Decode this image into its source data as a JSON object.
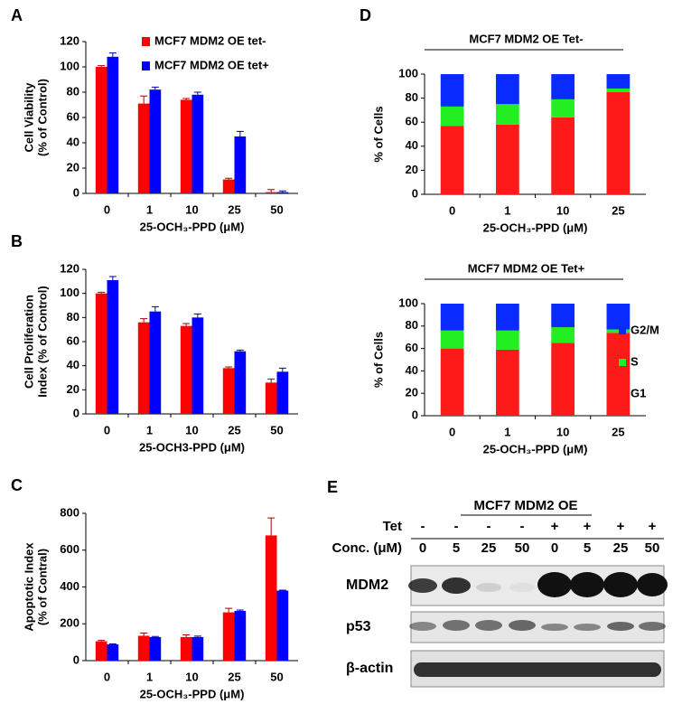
{
  "chart_data": [
    {
      "type": "bar",
      "label": "A",
      "categories": [
        "0",
        "1",
        "10",
        "25",
        "50"
      ],
      "series": [
        {
          "name": "MCF7 MDM2 OE tet-",
          "color": "#ff0000",
          "values": [
            100,
            71,
            74,
            11,
            1
          ],
          "errors": [
            1,
            6,
            1,
            1,
            2
          ]
        },
        {
          "name": "MCF7 MDM2 OE tet+",
          "color": "#0000ff",
          "values": [
            108,
            82,
            78,
            45,
            1
          ],
          "errors": [
            3,
            2,
            2,
            4,
            1
          ]
        }
      ],
      "ylim": [
        0,
        120
      ],
      "yticks": [
        0,
        20,
        40,
        60,
        80,
        100,
        120
      ],
      "ylabel": [
        "Cell Viability",
        "(% of Control)"
      ],
      "xlabel": "25-OCH₃-PPD (μM)",
      "legend": "top"
    },
    {
      "type": "bar",
      "label": "B",
      "categories": [
        "0",
        "1",
        "10",
        "25",
        "50"
      ],
      "series": [
        {
          "color": "#ff0000",
          "values": [
            100,
            76,
            73,
            38,
            26
          ],
          "errors": [
            1,
            3,
            2,
            1,
            3
          ]
        },
        {
          "color": "#0000ff",
          "values": [
            111,
            85,
            80,
            52,
            35
          ],
          "errors": [
            3,
            4,
            3,
            1,
            3
          ]
        }
      ],
      "ylim": [
        0,
        120
      ],
      "yticks": [
        0,
        20,
        40,
        60,
        80,
        100,
        120
      ],
      "ylabel": [
        "Cell Proliferation",
        "Index (% of Control)"
      ],
      "xlabel": "25-OCH3-PPD (μM)"
    },
    {
      "type": "bar",
      "label": "C",
      "categories": [
        "0",
        "1",
        "10",
        "25",
        "50"
      ],
      "series": [
        {
          "color": "#ff0000",
          "values": [
            105,
            135,
            128,
            262,
            680
          ],
          "errors": [
            5,
            15,
            12,
            22,
            95
          ]
        },
        {
          "color": "#0000ff",
          "values": [
            88,
            128,
            128,
            270,
            380
          ],
          "errors": [
            3,
            3,
            5,
            5,
            3
          ]
        }
      ],
      "ylim": [
        0,
        800
      ],
      "yticks": [
        0,
        200,
        400,
        600,
        800
      ],
      "ylabel": [
        "Apoptotic Index",
        "(% of Contral)"
      ],
      "xlabel": "25-OCH₃-PPD (μM)"
    },
    {
      "type": "stacked_bar",
      "label": "D",
      "title": "MCF7 MDM2 OE Tet-",
      "categories": [
        "0",
        "1",
        "10",
        "25"
      ],
      "series": [
        {
          "color": "#ff1a1a",
          "values": [
            57,
            58,
            64,
            85
          ]
        },
        {
          "color": "#22ee22",
          "values": [
            16,
            17,
            15,
            3
          ]
        },
        {
          "color": "#0a2bff",
          "values": [
            27,
            25,
            21,
            12
          ]
        }
      ],
      "ylim": [
        0,
        100
      ],
      "yticks": [
        0,
        20,
        40,
        60,
        80,
        100
      ],
      "ylabel": [
        "% of Cells"
      ],
      "xlabel": "25-OCH₃-PPD (μM)"
    },
    {
      "type": "stacked_bar",
      "title": "MCF7 MDM2 OE Tet+",
      "categories": [
        "0",
        "1",
        "10",
        "25"
      ],
      "series": [
        {
          "name": "G1",
          "color": "#ff1a1a",
          "values": [
            60,
            59,
            65,
            74
          ]
        },
        {
          "name": "S",
          "color": "#22ee22",
          "values": [
            16,
            17,
            14,
            3
          ]
        },
        {
          "name": "G2/M",
          "color": "#0a2bff",
          "values": [
            24,
            24,
            21,
            23
          ]
        }
      ],
      "ylim": [
        0,
        100
      ],
      "yticks": [
        0,
        20,
        40,
        60,
        80,
        100
      ],
      "ylabel": [
        "% of Cells"
      ],
      "xlabel": "25-OCH₃-PPD (μM)",
      "legend": "right"
    }
  ],
  "blot": {
    "label": "E",
    "title": "MCF7 MDM2 OE",
    "rows": [
      {
        "label": "Tet",
        "values": [
          "-",
          "-",
          "-",
          "-",
          "+",
          "+",
          "+",
          "+"
        ]
      },
      {
        "label": "Conc. (μM)",
        "values": [
          "0",
          "5",
          "25",
          "50",
          "0",
          "5",
          "25",
          "50"
        ]
      }
    ],
    "bands": [
      "MDM2",
      "p53",
      "β-actin"
    ]
  }
}
